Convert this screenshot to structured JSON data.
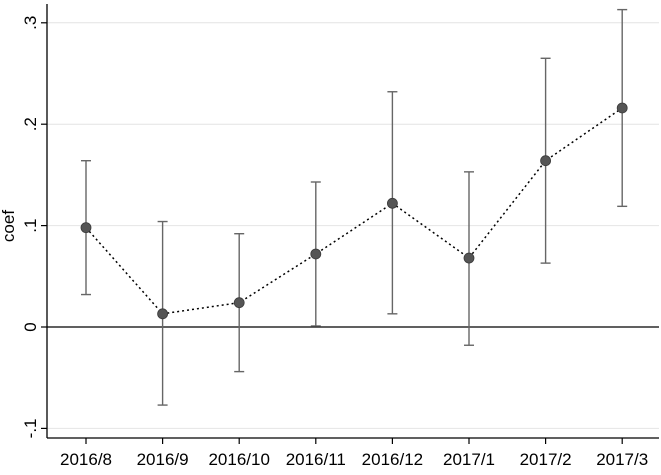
{
  "chart_data": {
    "type": "scatter",
    "title": "",
    "xlabel": "",
    "ylabel": "coef",
    "categories": [
      "2016/8",
      "2016/9",
      "2016/10",
      "2016/11",
      "2016/12",
      "2017/1",
      "2017/2",
      "2017/3"
    ],
    "series": [
      {
        "values": [
          0.098,
          0.013,
          0.024,
          0.072,
          0.122,
          0.068,
          0.164,
          0.216
        ],
        "ci_low": [
          0.032,
          -0.077,
          -0.044,
          0.001,
          0.013,
          -0.018,
          0.063,
          0.119
        ],
        "ci_high": [
          0.164,
          0.104,
          0.092,
          0.143,
          0.232,
          0.153,
          0.265,
          0.313
        ]
      }
    ],
    "ylim": [
      -0.1,
      0.3
    ],
    "yticks": [
      -0.1,
      0,
      0.1,
      0.2,
      0.3
    ],
    "ytick_labels": [
      "-.1",
      "0",
      ".1",
      ".2",
      ".3"
    ],
    "grid": true,
    "reference_line_y": 0,
    "line_style": "dotted",
    "colors": {
      "marker": "#555555",
      "error_bar": "#666666",
      "connector": "#000000",
      "grid": "#e4e4e4",
      "axis": "#000000"
    }
  }
}
